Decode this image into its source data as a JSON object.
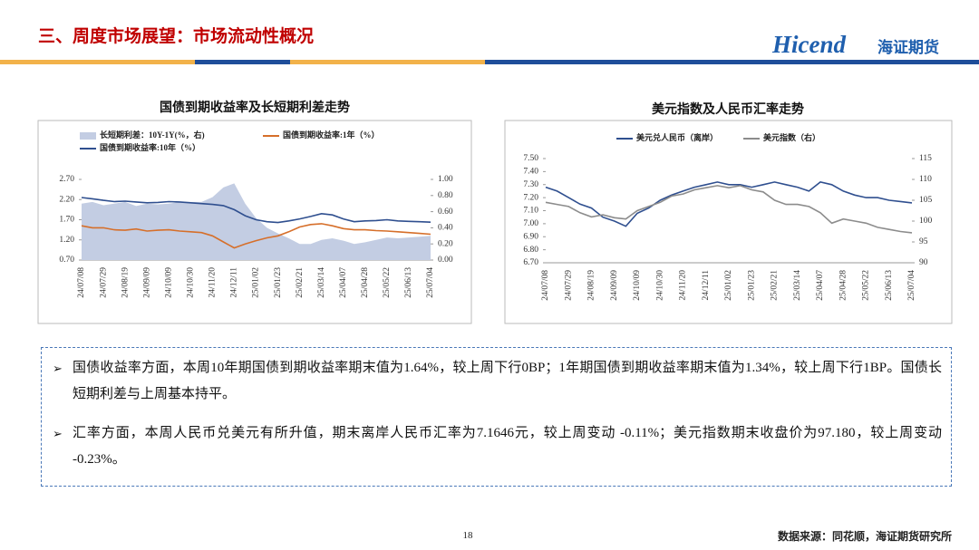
{
  "header": {
    "title": "三、周度市场展望：市场流动性概况",
    "logo": "Hicend",
    "logo_cn": "海证期货"
  },
  "chart_data": [
    {
      "type": "line",
      "title": "国债到期收益率及长短期利差走势",
      "categories": [
        "24/07/08",
        null,
        "24/07/29",
        null,
        "24/08/19",
        null,
        "24/09/09",
        null,
        "24/10/09",
        null,
        "24/10/30",
        null,
        "24/11/20",
        null,
        "24/12/11",
        null,
        "25/01/02",
        null,
        "25/01/23",
        null,
        "25/02/21",
        null,
        "25/03/14",
        null,
        "25/04/07",
        null,
        "25/04/28",
        null,
        "25/05/22",
        null,
        "25/06/13",
        null,
        "25/07/04"
      ],
      "ylim": [
        0.7,
        2.7
      ],
      "yticks": [
        {
          "value": 0.7,
          "label": "0.70"
        },
        {
          "value": 1.2,
          "label": "1.20"
        },
        {
          "value": 1.7,
          "label": "1.70"
        },
        {
          "value": 2.2,
          "label": "2.20"
        },
        {
          "value": 2.7,
          "label": "2.70"
        }
      ],
      "y2lim": [
        0,
        1
      ],
      "y2ticks": [
        {
          "value": 0,
          "label": "0.00"
        },
        {
          "value": 0.2,
          "label": "0.20"
        },
        {
          "value": 0.4,
          "label": "0.40"
        },
        {
          "value": 0.6,
          "label": "0.60"
        },
        {
          "value": 0.8,
          "label": "0.80"
        },
        {
          "value": 1,
          "label": "1.00"
        }
      ],
      "series": [
        {
          "name": "长短期利差：10Y-1Y(%，右)",
          "type": "area",
          "axis": "y2",
          "color": "#c3cde3",
          "values": [
            0.7,
            0.72,
            0.68,
            0.7,
            0.72,
            0.67,
            0.7,
            0.69,
            0.7,
            0.72,
            0.72,
            0.72,
            0.78,
            0.9,
            0.95,
            0.7,
            0.52,
            0.4,
            0.33,
            0.27,
            0.2,
            0.2,
            0.25,
            0.27,
            0.24,
            0.2,
            0.22,
            0.25,
            0.28,
            0.27,
            0.28,
            0.29,
            0.3
          ]
        },
        {
          "name": "国债到期收益率:1年（%）",
          "type": "line",
          "color": "#d66f2a",
          "values": [
            1.55,
            1.5,
            1.5,
            1.45,
            1.44,
            1.47,
            1.42,
            1.44,
            1.45,
            1.42,
            1.4,
            1.38,
            1.3,
            1.15,
            1.0,
            1.1,
            1.18,
            1.25,
            1.3,
            1.4,
            1.52,
            1.58,
            1.6,
            1.55,
            1.48,
            1.45,
            1.45,
            1.43,
            1.42,
            1.4,
            1.38,
            1.36,
            1.34
          ]
        },
        {
          "name": "国债到期收益率:10年（%）",
          "type": "line",
          "color": "#2f4f8f",
          "values": [
            2.25,
            2.22,
            2.18,
            2.15,
            2.16,
            2.14,
            2.12,
            2.13,
            2.15,
            2.14,
            2.12,
            2.1,
            2.08,
            2.05,
            1.95,
            1.8,
            1.7,
            1.65,
            1.63,
            1.67,
            1.72,
            1.78,
            1.85,
            1.82,
            1.72,
            1.65,
            1.67,
            1.68,
            1.7,
            1.67,
            1.66,
            1.65,
            1.64
          ]
        }
      ]
    },
    {
      "type": "line",
      "title": "美元指数及人民币汇率走势",
      "categories": [
        "24/07/08",
        null,
        "24/07/29",
        null,
        "24/08/19",
        null,
        "24/09/09",
        null,
        "24/10/09",
        null,
        "24/10/30",
        null,
        "24/11/20",
        null,
        "24/12/11",
        null,
        "25/01/02",
        null,
        "25/01/23",
        null,
        "25/02/21",
        null,
        "25/03/14",
        null,
        "25/04/07",
        null,
        "25/04/28",
        null,
        "25/05/22",
        null,
        "25/06/13",
        null,
        "25/07/04"
      ],
      "ylim": [
        6.7,
        7.5
      ],
      "yticks": [
        {
          "value": 6.7,
          "label": "6.70"
        },
        {
          "value": 6.8,
          "label": "6.80"
        },
        {
          "value": 6.9,
          "label": "6.90"
        },
        {
          "value": 7,
          "label": "7.00"
        },
        {
          "value": 7.1,
          "label": "7.10"
        },
        {
          "value": 7.2,
          "label": "7.20"
        },
        {
          "value": 7.3,
          "label": "7.30"
        },
        {
          "value": 7.4,
          "label": "7.40"
        },
        {
          "value": 7.5,
          "label": "7.50"
        }
      ],
      "y2lim": [
        90,
        115
      ],
      "y2ticks": [
        90,
        95,
        100,
        105,
        110,
        115
      ],
      "series": [
        {
          "name": "美元兑人民币（离岸）",
          "type": "line",
          "color": "#2f4f8f",
          "values": [
            7.28,
            7.25,
            7.2,
            7.15,
            7.12,
            7.05,
            7.02,
            6.98,
            7.08,
            7.12,
            7.18,
            7.22,
            7.25,
            7.28,
            7.3,
            7.32,
            7.3,
            7.3,
            7.28,
            7.3,
            7.32,
            7.3,
            7.28,
            7.25,
            7.32,
            7.3,
            7.25,
            7.22,
            7.2,
            7.2,
            7.18,
            7.17,
            7.16
          ]
        },
        {
          "name": "美元指数（右）",
          "type": "line",
          "axis": "y2",
          "color": "#8c8c8c",
          "values": [
            104.5,
            104,
            103.5,
            102,
            101,
            101.5,
            100.8,
            100.5,
            102.5,
            103.5,
            104.5,
            106,
            106.5,
            107.5,
            108,
            108.5,
            108,
            108.5,
            107.5,
            107,
            105,
            104,
            104,
            103.5,
            102,
            99.5,
            100.5,
            100,
            99.5,
            98.5,
            98,
            97.5,
            97.2
          ]
        }
      ]
    }
  ],
  "bullets": [
    "国债收益率方面，本周10年期国债到期收益率期末值为1.64%，较上周下行0BP；1年期国债到期收益率期末值为1.34%，较上周下行1BP。国债长短期利差与上周基本持平。",
    "汇率方面，本周人民币兑美元有所升值，期末离岸人民币汇率为7.1646元，较上周变动 -0.11%；美元指数期末收盘价为97.180，较上周变动 -0.23%。"
  ],
  "footer": {
    "page": "18",
    "source": "数据来源：同花顺，海证期货研究所"
  }
}
